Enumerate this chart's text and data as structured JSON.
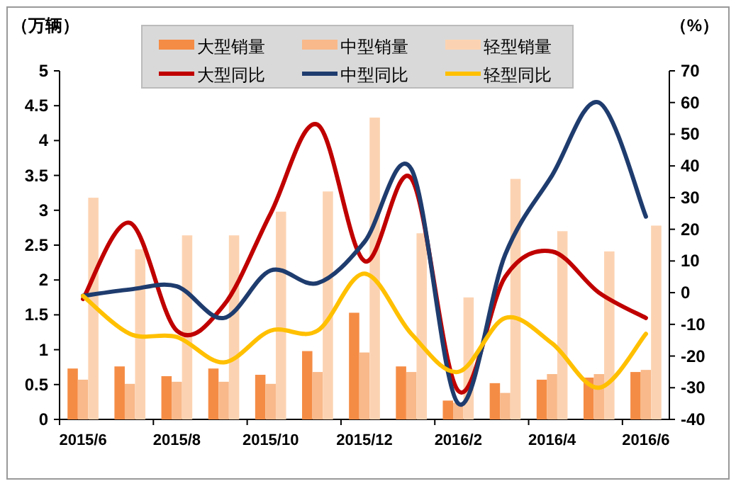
{
  "chart_data": {
    "type": "bar",
    "ylabel": "（万辆）",
    "y2label": "（%）",
    "categories": [
      "2015/6",
      null,
      "2015/8",
      null,
      "2015/10",
      null,
      "2015/12",
      null,
      "2016/2",
      null,
      "2016/4",
      null,
      "2016/6"
    ],
    "series": [
      {
        "name": "大型销量",
        "color": "#f58c45",
        "values": [
          0.73,
          0.76,
          0.62,
          0.73,
          0.64,
          0.98,
          1.53,
          0.76,
          0.27,
          0.52,
          0.57,
          0.6,
          0.68
        ]
      },
      {
        "name": "中型销量",
        "color": "#f9b98a",
        "values": [
          0.57,
          0.51,
          0.54,
          0.54,
          0.51,
          0.68,
          0.96,
          0.68,
          0.24,
          0.38,
          0.65,
          0.65,
          0.71
        ]
      },
      {
        "name": "轻型销量",
        "color": "#fcd3b2",
        "values": [
          3.18,
          2.44,
          2.64,
          2.64,
          2.98,
          3.27,
          4.33,
          2.67,
          1.75,
          3.45,
          2.7,
          2.41,
          2.78
        ]
      },
      {
        "name": "大型同比",
        "type": "line",
        "axis": "y2",
        "color": "#c00000",
        "values": [
          -2,
          22,
          -12,
          -4,
          25,
          53,
          10,
          36,
          -31,
          5,
          13,
          0,
          -8
        ]
      },
      {
        "name": "中型同比",
        "type": "line",
        "axis": "y2",
        "color": "#1f3c6e",
        "values": [
          -1,
          1,
          2,
          -8,
          7,
          3,
          16,
          39,
          -35,
          12,
          37,
          60,
          24
        ]
      },
      {
        "name": "轻型同比",
        "type": "line",
        "axis": "y2",
        "color": "#ffc000",
        "values": [
          -1,
          -13,
          -14,
          -22,
          -12,
          -12,
          6,
          -13,
          -25,
          -8,
          -16,
          -30,
          -13
        ]
      }
    ],
    "ylim": [
      0,
      5
    ],
    "yticks": [
      0,
      0.5,
      1,
      1.5,
      2,
      2.5,
      3,
      3.5,
      4,
      4.5,
      5
    ],
    "y2lim": [
      -40,
      70
    ],
    "y2ticks": [
      -40,
      -30,
      -20,
      -10,
      0,
      10,
      20,
      30,
      40,
      50,
      60,
      70
    ],
    "legend": "top",
    "grid": false
  }
}
